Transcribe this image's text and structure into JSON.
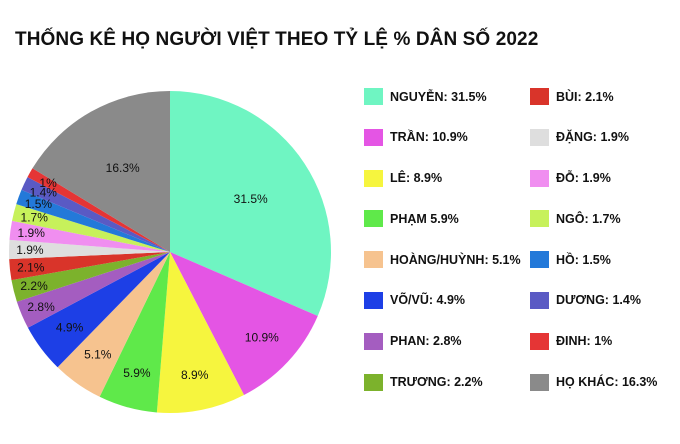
{
  "chart_data": {
    "type": "pie",
    "title": "THỐNG KÊ HỌ NGƯỜI VIỆT THEO TỶ LỆ % DÂN SỐ 2022",
    "slices": [
      {
        "name": "NGUYỄN",
        "value": 31.5,
        "label": "31.5%",
        "legend": "NGUYỄN: 31.5%",
        "color": "#6ff5c2"
      },
      {
        "name": "TRẦN",
        "value": 10.9,
        "label": "10.9%",
        "legend": "TRẦN: 10.9%",
        "color": "#e455e4"
      },
      {
        "name": "LÊ",
        "value": 8.9,
        "label": "8.9%",
        "legend": "LÊ: 8.9%",
        "color": "#f6f53e"
      },
      {
        "name": "PHẠM",
        "value": 5.9,
        "label": "5.9%",
        "legend": "PHẠM 5.9%",
        "color": "#5fe94a"
      },
      {
        "name": "HOÀNG/HUỲNH",
        "value": 5.1,
        "label": "5.1%",
        "legend": "HOÀNG/HUỲNH: 5.1%",
        "color": "#f6c38f"
      },
      {
        "name": "VÕ/VŨ",
        "value": 4.9,
        "label": "4.9%",
        "legend": "VÕ/VŨ: 4.9%",
        "color": "#1d3fe6"
      },
      {
        "name": "PHAN",
        "value": 2.8,
        "label": "2.8%",
        "legend": "PHAN: 2.8%",
        "color": "#a45dc0"
      },
      {
        "name": "TRƯƠNG",
        "value": 2.2,
        "label": "2.2%",
        "legend": "TRƯƠNG: 2.2%",
        "color": "#7cb22c"
      },
      {
        "name": "BÙI",
        "value": 2.1,
        "label": "2.1%",
        "legend": "BÙI: 2.1%",
        "color": "#d9342a"
      },
      {
        "name": "ĐẶNG",
        "value": 1.9,
        "label": "1.9%",
        "legend": "ĐẶNG: 1.9%",
        "color": "#dedede"
      },
      {
        "name": "ĐỖ",
        "value": 1.9,
        "label": "1.9%",
        "legend": "ĐỖ: 1.9%",
        "color": "#f08ef0"
      },
      {
        "name": "NGÔ",
        "value": 1.7,
        "label": "1.7%",
        "legend": "NGÔ: 1.7%",
        "color": "#c7f15b"
      },
      {
        "name": "HỒ",
        "value": 1.5,
        "label": "1.5%",
        "legend": "HỒ: 1.5%",
        "color": "#2379d9"
      },
      {
        "name": "DƯƠNG",
        "value": 1.4,
        "label": "1.4%",
        "legend": "DƯƠNG: 1.4%",
        "color": "#5a5ac4"
      },
      {
        "name": "ĐINH",
        "value": 1.0,
        "label": "1%",
        "legend": "ĐINH: 1%",
        "color": "#e53535"
      },
      {
        "name": "HỌ KHÁC",
        "value": 16.3,
        "label": "16.3%",
        "legend": "HỌ KHÁC: 16.3%",
        "color": "#8a8a8a"
      }
    ],
    "legend_columns": [
      [
        "NGUYỄN",
        "TRẦN",
        "LÊ",
        "PHẠM",
        "HOÀNG/HUỲNH",
        "VÕ/VŨ",
        "PHAN",
        "TRƯƠNG"
      ],
      [
        "BÙI",
        "ĐẶNG",
        "ĐỖ",
        "NGÔ",
        "HỒ",
        "DƯƠNG",
        "ĐINH",
        "HỌ KHÁC"
      ]
    ],
    "legend_position": "right",
    "start_angle": "12 o'clock",
    "direction": "clockwise"
  }
}
